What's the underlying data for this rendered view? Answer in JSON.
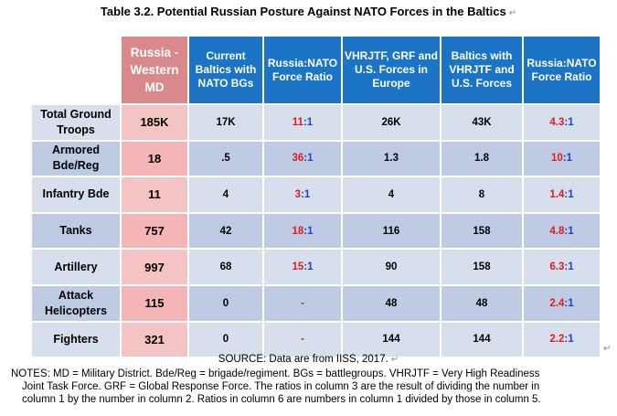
{
  "title": "Table 3.2. Potential Russian Posture Against NATO Forces in the Baltics",
  "paragraph_mark": "↵",
  "header": {
    "russia": "Russia - Western MD",
    "current_baltics": "Current Baltics with NATO BGs",
    "ratio1": "Russia:NATO Force Ratio",
    "vhrjtf": "VHRJTF, GRF and U.S. Forces in Europe",
    "baltics_vhrjtf": "Baltics with VHRJTF and U.S. Forces",
    "ratio2": "Russia:NATO Force Ratio"
  },
  "rows": [
    {
      "label": "Total Ground Troops",
      "russia": "185K",
      "current": "17K",
      "ratio1_left": "11",
      "ratio1_right": "1",
      "vhrjtf": "26K",
      "baltics": "43K",
      "ratio2_left": "4.3",
      "ratio2_right": "1"
    },
    {
      "label": "Armored Bde/Reg",
      "russia": "18",
      "current": ".5",
      "ratio1_left": "36",
      "ratio1_right": "1",
      "vhrjtf": "1.3",
      "baltics": "1.8",
      "ratio2_left": "10",
      "ratio2_right": "1"
    },
    {
      "label": "Infantry Bde",
      "russia": "11",
      "current": "4",
      "ratio1_left": "3",
      "ratio1_right": "1",
      "vhrjtf": "4",
      "baltics": "8",
      "ratio2_left": "1.4",
      "ratio2_right": "1"
    },
    {
      "label": "Tanks",
      "russia": "757",
      "current": "42",
      "ratio1_left": "18",
      "ratio1_right": "1",
      "vhrjtf": "116",
      "baltics": "158",
      "ratio2_left": "4.8",
      "ratio2_right": "1"
    },
    {
      "label": "Artillery",
      "russia": "997",
      "current": "68",
      "ratio1_left": "15",
      "ratio1_right": "1",
      "vhrjtf": "90",
      "baltics": "158",
      "ratio2_left": "6.3",
      "ratio2_right": "1"
    },
    {
      "label": "Attack Helicopters",
      "russia": "115",
      "current": "0",
      "ratio1_dash": "-",
      "vhrjtf": "48",
      "baltics": "48",
      "ratio2_left": "2.4",
      "ratio2_right": "1"
    },
    {
      "label": "Fighters",
      "russia": "321",
      "current": "0",
      "ratio1_dash": "-",
      "vhrjtf": "144",
      "baltics": "144",
      "ratio2_left": "2.2",
      "ratio2_right": "1"
    }
  ],
  "source": "SOURCE: Data are from IISS, 2017.",
  "notes_line1": "NOTES: MD = Military District. Bde/Reg = brigade/regiment. BGs = battlegroups. VHRJTF = Very High Readiness",
  "notes_line2": "Joint Task Force. GRF = Global Response Force. The ratios in column 3 are the result of dividing the number in",
  "notes_line3": "column 1 by the number in column 2. Ratios in column 6 are numbers in column 1 divided by those in column 5."
}
